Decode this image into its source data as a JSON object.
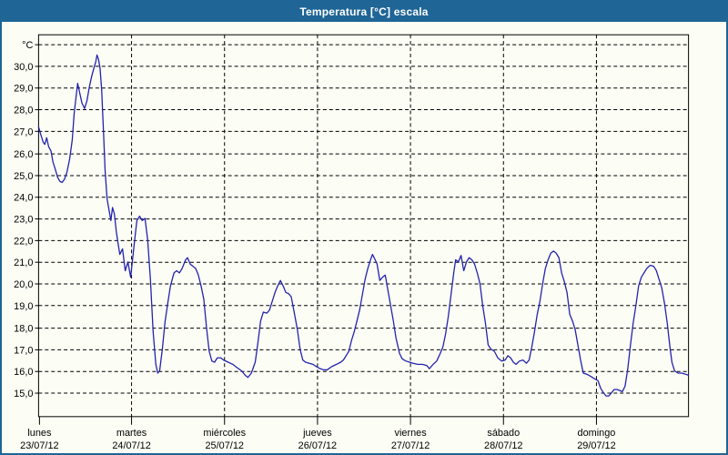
{
  "window": {
    "title": "Temperatura [°C] escala"
  },
  "colors": {
    "titlebar_bg": "#1F6596",
    "titlebar_text": "#FFFFFF",
    "frame_border": "#1F6596",
    "window_bg": "#FCFDF5",
    "axis": "#000000",
    "grid": "#000000",
    "label_text": "#000000",
    "line": "#2222AE"
  },
  "chart_data": {
    "type": "line",
    "title": "Temperatura [°C] escala",
    "ylabel": "°C",
    "xlabel": "",
    "grid": "dashed",
    "legend": "none",
    "ylim_shown": [
      13.9,
      31.4
    ],
    "x_span_days": 7,
    "y_axis": {
      "unit_label": "°C",
      "ticks": [
        {
          "v": 31,
          "label": "°C"
        },
        {
          "v": 30,
          "label": "30,0"
        },
        {
          "v": 29,
          "label": "29,0"
        },
        {
          "v": 28,
          "label": "28,0"
        },
        {
          "v": 27,
          "label": "27,0"
        },
        {
          "v": 26,
          "label": "26,0"
        },
        {
          "v": 25,
          "label": "25,0"
        },
        {
          "v": 24,
          "label": "24,0"
        },
        {
          "v": 23,
          "label": "23,0"
        },
        {
          "v": 22,
          "label": "22,0"
        },
        {
          "v": 21,
          "label": "21,0"
        },
        {
          "v": 20,
          "label": "20,0"
        },
        {
          "v": 19,
          "label": "19,0"
        },
        {
          "v": 18,
          "label": "18,0"
        },
        {
          "v": 17,
          "label": "17,0"
        },
        {
          "v": 16,
          "label": "16,0"
        },
        {
          "v": 15,
          "label": "15,0"
        }
      ]
    },
    "x_axis": {
      "days": [
        {
          "name": "lunes",
          "date": "23/07/12"
        },
        {
          "name": "martes",
          "date": "24/07/12"
        },
        {
          "name": "miércoles",
          "date": "25/07/12"
        },
        {
          "name": "jueves",
          "date": "26/07/12"
        },
        {
          "name": "viernes",
          "date": "27/07/12"
        },
        {
          "name": "sábado",
          "date": "28/07/12"
        },
        {
          "name": "domingo",
          "date": "29/07/12"
        }
      ]
    },
    "series": [
      {
        "name": "Temperatura",
        "color": "#2222AE",
        "points_hour_temp": [
          [
            0,
            27.2
          ],
          [
            0.5,
            26.9
          ],
          [
            1.2,
            26.5
          ],
          [
            1.6,
            26.4
          ],
          [
            2.1,
            26.7
          ],
          [
            2.6,
            26.3
          ],
          [
            3.2,
            26.1
          ],
          [
            3.7,
            25.6
          ],
          [
            4.4,
            25.2
          ],
          [
            4.9,
            24.9
          ],
          [
            5.5,
            24.7
          ],
          [
            6.1,
            24.65
          ],
          [
            6.7,
            24.8
          ],
          [
            7.3,
            25.1
          ],
          [
            8.0,
            25.7
          ],
          [
            8.7,
            26.6
          ],
          [
            9.2,
            27.8
          ],
          [
            9.7,
            28.6
          ],
          [
            10.1,
            29.2
          ],
          [
            10.6,
            28.8
          ],
          [
            11.2,
            28.3
          ],
          [
            11.9,
            28.05
          ],
          [
            12.5,
            28.4
          ],
          [
            13.1,
            29.0
          ],
          [
            13.7,
            29.5
          ],
          [
            14.3,
            29.9
          ],
          [
            14.8,
            30.2
          ],
          [
            15.1,
            30.5
          ],
          [
            15.5,
            30.3
          ],
          [
            15.9,
            29.9
          ],
          [
            16.3,
            28.9
          ],
          [
            16.8,
            26.9
          ],
          [
            17.2,
            25.2
          ],
          [
            17.7,
            23.9
          ],
          [
            18.2,
            23.4
          ],
          [
            18.7,
            22.9
          ],
          [
            19.1,
            23.5
          ],
          [
            19.6,
            23.2
          ],
          [
            20.1,
            22.4
          ],
          [
            20.5,
            21.9
          ],
          [
            21.0,
            21.35
          ],
          [
            21.7,
            21.6
          ],
          [
            22.4,
            20.6
          ],
          [
            23.1,
            21.0
          ],
          [
            23.8,
            20.3
          ],
          [
            24.7,
            21.8
          ],
          [
            25.4,
            22.9
          ],
          [
            26.1,
            23.1
          ],
          [
            26.8,
            22.9
          ],
          [
            27.5,
            23.0
          ],
          [
            28.2,
            22.0
          ],
          [
            28.9,
            20.2
          ],
          [
            29.6,
            17.8
          ],
          [
            30.3,
            16.3
          ],
          [
            30.8,
            15.9
          ],
          [
            31.3,
            16.0
          ],
          [
            32.0,
            17.0
          ],
          [
            32.7,
            18.25
          ],
          [
            33.4,
            19.1
          ],
          [
            34.1,
            19.9
          ],
          [
            35.0,
            20.5
          ],
          [
            35.7,
            20.6
          ],
          [
            36.4,
            20.5
          ],
          [
            37.1,
            20.7
          ],
          [
            38.0,
            21.1
          ],
          [
            38.5,
            21.2
          ],
          [
            39.2,
            20.9
          ],
          [
            39.9,
            20.8
          ],
          [
            40.6,
            20.7
          ],
          [
            41.3,
            20.4
          ],
          [
            42.0,
            19.9
          ],
          [
            42.7,
            19.3
          ],
          [
            43.4,
            18.0
          ],
          [
            44.1,
            16.9
          ],
          [
            44.8,
            16.45
          ],
          [
            45.5,
            16.4
          ],
          [
            46.2,
            16.6
          ],
          [
            47.1,
            16.6
          ],
          [
            47.8,
            16.5
          ],
          [
            49.0,
            16.4
          ],
          [
            50.2,
            16.3
          ],
          [
            51.3,
            16.15
          ],
          [
            52.5,
            16.0
          ],
          [
            53.4,
            15.8
          ],
          [
            54.1,
            15.7
          ],
          [
            55.0,
            15.9
          ],
          [
            56.0,
            16.4
          ],
          [
            56.7,
            17.3
          ],
          [
            57.4,
            18.3
          ],
          [
            58.1,
            18.7
          ],
          [
            59.0,
            18.65
          ],
          [
            59.7,
            18.8
          ],
          [
            60.4,
            19.2
          ],
          [
            61.1,
            19.6
          ],
          [
            61.8,
            19.9
          ],
          [
            62.5,
            20.15
          ],
          [
            63.2,
            19.9
          ],
          [
            63.9,
            19.6
          ],
          [
            64.6,
            19.55
          ],
          [
            65.3,
            19.4
          ],
          [
            66.0,
            18.75
          ],
          [
            66.9,
            17.9
          ],
          [
            67.6,
            17.0
          ],
          [
            68.3,
            16.5
          ],
          [
            69.0,
            16.4
          ],
          [
            70.0,
            16.35
          ],
          [
            70.9,
            16.3
          ],
          [
            71.8,
            16.2
          ],
          [
            72.8,
            16.1
          ],
          [
            73.7,
            16.05
          ],
          [
            74.6,
            16.05
          ],
          [
            75.8,
            16.2
          ],
          [
            77.0,
            16.3
          ],
          [
            78.1,
            16.4
          ],
          [
            78.8,
            16.5
          ],
          [
            79.5,
            16.7
          ],
          [
            80.2,
            16.9
          ],
          [
            80.9,
            17.4
          ],
          [
            81.6,
            17.8
          ],
          [
            82.3,
            18.3
          ],
          [
            83.0,
            18.8
          ],
          [
            83.7,
            19.5
          ],
          [
            84.4,
            20.2
          ],
          [
            85.1,
            20.7
          ],
          [
            85.8,
            21.1
          ],
          [
            86.3,
            21.35
          ],
          [
            87.0,
            21.1
          ],
          [
            87.5,
            20.9
          ],
          [
            88.2,
            20.15
          ],
          [
            88.9,
            20.3
          ],
          [
            89.6,
            20.4
          ],
          [
            90.3,
            19.7
          ],
          [
            91.0,
            19.0
          ],
          [
            91.7,
            18.3
          ],
          [
            92.4,
            17.5
          ],
          [
            93.3,
            16.8
          ],
          [
            94.0,
            16.55
          ],
          [
            95.0,
            16.45
          ],
          [
            95.9,
            16.4
          ],
          [
            96.8,
            16.35
          ],
          [
            98.0,
            16.3
          ],
          [
            99.2,
            16.3
          ],
          [
            100.3,
            16.25
          ],
          [
            101.0,
            16.1
          ],
          [
            102.0,
            16.3
          ],
          [
            102.9,
            16.45
          ],
          [
            103.8,
            16.8
          ],
          [
            104.5,
            17.1
          ],
          [
            105.2,
            17.7
          ],
          [
            105.9,
            18.5
          ],
          [
            106.6,
            19.5
          ],
          [
            107.3,
            20.5
          ],
          [
            107.8,
            21.1
          ],
          [
            108.5,
            21.0
          ],
          [
            109.2,
            21.3
          ],
          [
            109.9,
            20.6
          ],
          [
            110.6,
            21.0
          ],
          [
            111.3,
            21.2
          ],
          [
            112.0,
            21.1
          ],
          [
            112.7,
            20.9
          ],
          [
            113.4,
            20.5
          ],
          [
            114.1,
            20.0
          ],
          [
            114.8,
            19.0
          ],
          [
            115.5,
            18.2
          ],
          [
            116.2,
            17.2
          ],
          [
            116.9,
            17.0
          ],
          [
            117.8,
            16.9
          ],
          [
            118.7,
            16.6
          ],
          [
            119.7,
            16.45
          ],
          [
            120.6,
            16.5
          ],
          [
            121.3,
            16.7
          ],
          [
            122.0,
            16.6
          ],
          [
            122.7,
            16.4
          ],
          [
            123.4,
            16.3
          ],
          [
            124.3,
            16.45
          ],
          [
            125.2,
            16.5
          ],
          [
            126.1,
            16.35
          ],
          [
            126.8,
            16.5
          ],
          [
            127.5,
            17.1
          ],
          [
            128.2,
            17.8
          ],
          [
            128.9,
            18.6
          ],
          [
            129.6,
            19.2
          ],
          [
            130.3,
            20.0
          ],
          [
            131.0,
            20.7
          ],
          [
            131.7,
            21.1
          ],
          [
            132.4,
            21.4
          ],
          [
            133.1,
            21.5
          ],
          [
            133.8,
            21.4
          ],
          [
            134.5,
            21.2
          ],
          [
            135.2,
            20.5
          ],
          [
            135.9,
            20.1
          ],
          [
            136.6,
            19.6
          ],
          [
            137.3,
            18.6
          ],
          [
            138.0,
            18.3
          ],
          [
            138.7,
            17.9
          ],
          [
            139.4,
            17.2
          ],
          [
            140.1,
            16.5
          ],
          [
            140.8,
            15.9
          ],
          [
            141.7,
            15.85
          ],
          [
            142.7,
            15.75
          ],
          [
            143.6,
            15.65
          ],
          [
            144.6,
            15.55
          ],
          [
            145.3,
            15.2
          ],
          [
            146.0,
            15.0
          ],
          [
            146.7,
            14.85
          ],
          [
            147.4,
            14.85
          ],
          [
            148.1,
            15.0
          ],
          [
            148.8,
            15.15
          ],
          [
            149.5,
            15.15
          ],
          [
            150.2,
            15.1
          ],
          [
            150.9,
            15.05
          ],
          [
            151.6,
            15.3
          ],
          [
            152.3,
            16.1
          ],
          [
            153.0,
            17.2
          ],
          [
            153.7,
            18.2
          ],
          [
            154.4,
            19.0
          ],
          [
            155.1,
            19.9
          ],
          [
            155.8,
            20.3
          ],
          [
            156.5,
            20.5
          ],
          [
            157.2,
            20.7
          ],
          [
            158.1,
            20.85
          ],
          [
            159.0,
            20.8
          ],
          [
            159.7,
            20.6
          ],
          [
            160.4,
            20.2
          ],
          [
            161.1,
            19.8
          ],
          [
            161.8,
            19.1
          ],
          [
            162.5,
            18.2
          ],
          [
            163.2,
            17.1
          ],
          [
            163.7,
            16.4
          ],
          [
            164.4,
            16.0
          ],
          [
            165.3,
            15.9
          ],
          [
            166.3,
            15.9
          ],
          [
            167.2,
            15.85
          ],
          [
            168,
            15.8
          ]
        ]
      }
    ]
  }
}
